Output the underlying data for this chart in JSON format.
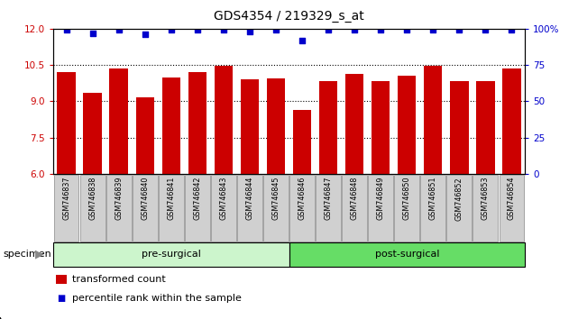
{
  "title": "GDS4354 / 219329_s_at",
  "samples": [
    "GSM746837",
    "GSM746838",
    "GSM746839",
    "GSM746840",
    "GSM746841",
    "GSM746842",
    "GSM746843",
    "GSM746844",
    "GSM746845",
    "GSM746846",
    "GSM746847",
    "GSM746848",
    "GSM746849",
    "GSM746850",
    "GSM746851",
    "GSM746852",
    "GSM746853",
    "GSM746854"
  ],
  "bar_values": [
    10.2,
    9.35,
    10.35,
    9.15,
    10.0,
    10.2,
    10.45,
    9.9,
    9.95,
    8.65,
    9.85,
    10.15,
    9.85,
    10.05,
    10.45,
    9.85,
    9.85,
    10.35
  ],
  "percentile_values": [
    99,
    97,
    99,
    96,
    99,
    99,
    99,
    98,
    99,
    92,
    99,
    99,
    99,
    99,
    99,
    99,
    99,
    99
  ],
  "bar_color": "#cc0000",
  "dot_color": "#0000cc",
  "ylim_left": [
    6,
    12
  ],
  "ylim_right": [
    0,
    100
  ],
  "yticks_left": [
    6,
    7.5,
    9,
    10.5,
    12
  ],
  "yticks_right": [
    0,
    25,
    50,
    75,
    100
  ],
  "pre_surgical_count": 9,
  "post_surgical_count": 9,
  "group_label_pre": "pre-surgical",
  "group_label_post": "post-surgical",
  "specimen_label": "specimen",
  "legend_bar_label": "transformed count",
  "legend_dot_label": "percentile rank within the sample",
  "group_bg_pre": "#ccf5cc",
  "group_bg_post": "#66dd66",
  "tick_bg_color": "#d0d0d0",
  "bar_width": 0.7,
  "title_fontsize": 10,
  "tick_fontsize": 7.5,
  "label_fontsize": 8
}
